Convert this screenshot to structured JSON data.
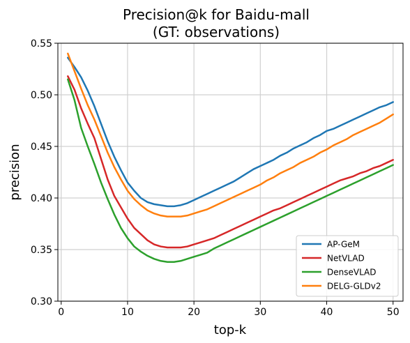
{
  "chart_data": {
    "type": "line",
    "title": [
      "Precision@k for Baidu-mall",
      "(GT: observations)"
    ],
    "xlabel": "top-k",
    "ylabel": "precision",
    "xlim": [
      -0.5,
      51.5
    ],
    "ylim": [
      0.3,
      0.55
    ],
    "xticks": [
      0,
      10,
      20,
      30,
      40,
      50
    ],
    "yticks": [
      0.3,
      0.35,
      0.4,
      0.45,
      0.5,
      0.55
    ],
    "xtick_labels": [
      "0",
      "10",
      "20",
      "30",
      "40",
      "50"
    ],
    "ytick_labels": [
      "0.30",
      "0.35",
      "0.40",
      "0.45",
      "0.50",
      "0.55"
    ],
    "grid": true,
    "legend_position": "lower-right",
    "x": [
      1,
      2,
      3,
      4,
      5,
      6,
      7,
      8,
      9,
      10,
      11,
      12,
      13,
      14,
      15,
      16,
      17,
      18,
      19,
      20,
      21,
      22,
      23,
      24,
      25,
      26,
      27,
      28,
      29,
      30,
      31,
      32,
      33,
      34,
      35,
      36,
      37,
      38,
      39,
      40,
      41,
      42,
      43,
      44,
      45,
      46,
      47,
      48,
      49,
      50
    ],
    "series": [
      {
        "name": "AP-GeM",
        "color": "#1f77b4",
        "values": [
          0.536,
          0.527,
          0.517,
          0.504,
          0.489,
          0.472,
          0.455,
          0.44,
          0.427,
          0.415,
          0.407,
          0.4,
          0.396,
          0.394,
          0.393,
          0.392,
          0.392,
          0.393,
          0.395,
          0.398,
          0.401,
          0.404,
          0.407,
          0.41,
          0.413,
          0.416,
          0.42,
          0.424,
          0.428,
          0.431,
          0.434,
          0.437,
          0.441,
          0.444,
          0.448,
          0.451,
          0.454,
          0.458,
          0.461,
          0.465,
          0.467,
          0.47,
          0.473,
          0.476,
          0.479,
          0.482,
          0.485,
          0.488,
          0.49,
          0.493
        ]
      },
      {
        "name": "NetVLAD",
        "color": "#d62728",
        "values": [
          0.518,
          0.505,
          0.487,
          0.472,
          0.458,
          0.438,
          0.418,
          0.402,
          0.391,
          0.38,
          0.371,
          0.365,
          0.359,
          0.355,
          0.353,
          0.352,
          0.352,
          0.352,
          0.353,
          0.355,
          0.357,
          0.359,
          0.361,
          0.364,
          0.367,
          0.37,
          0.373,
          0.376,
          0.379,
          0.382,
          0.385,
          0.388,
          0.39,
          0.393,
          0.396,
          0.399,
          0.402,
          0.405,
          0.408,
          0.411,
          0.414,
          0.417,
          0.419,
          0.421,
          0.424,
          0.426,
          0.429,
          0.431,
          0.434,
          0.437
        ]
      },
      {
        "name": "DenseVLAD",
        "color": "#2ca02c",
        "values": [
          0.515,
          0.495,
          0.468,
          0.45,
          0.433,
          0.415,
          0.399,
          0.384,
          0.371,
          0.361,
          0.353,
          0.348,
          0.344,
          0.341,
          0.339,
          0.338,
          0.338,
          0.339,
          0.341,
          0.343,
          0.345,
          0.347,
          0.351,
          0.354,
          0.357,
          0.36,
          0.363,
          0.366,
          0.369,
          0.372,
          0.375,
          0.378,
          0.381,
          0.384,
          0.387,
          0.39,
          0.393,
          0.396,
          0.399,
          0.402,
          0.405,
          0.408,
          0.411,
          0.414,
          0.417,
          0.42,
          0.423,
          0.426,
          0.429,
          0.432
        ]
      },
      {
        "name": "DELG-GLDv2",
        "color": "#ff7f0e",
        "values": [
          0.54,
          0.523,
          0.506,
          0.49,
          0.476,
          0.46,
          0.444,
          0.43,
          0.418,
          0.407,
          0.399,
          0.393,
          0.388,
          0.385,
          0.383,
          0.382,
          0.382,
          0.382,
          0.383,
          0.385,
          0.387,
          0.389,
          0.392,
          0.395,
          0.398,
          0.401,
          0.404,
          0.407,
          0.41,
          0.413,
          0.417,
          0.42,
          0.424,
          0.427,
          0.43,
          0.434,
          0.437,
          0.44,
          0.444,
          0.447,
          0.451,
          0.454,
          0.457,
          0.461,
          0.464,
          0.467,
          0.47,
          0.473,
          0.477,
          0.481
        ]
      }
    ]
  }
}
